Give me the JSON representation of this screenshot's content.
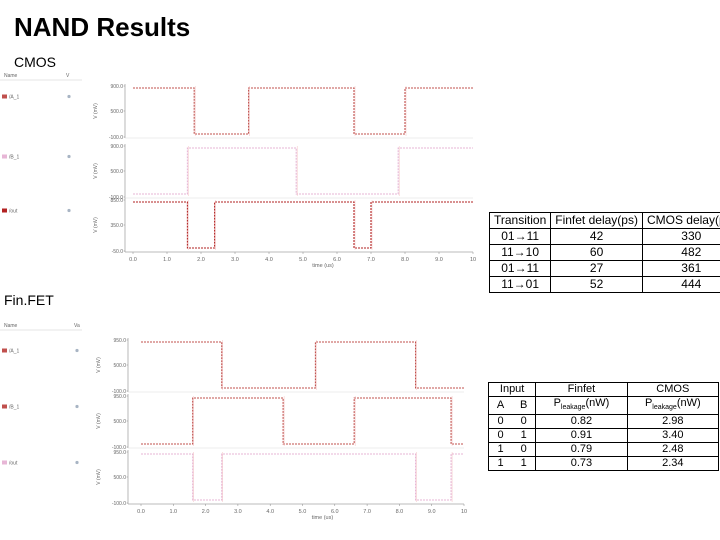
{
  "title": "NAND Results",
  "cmos_label": "CMOS",
  "finfet_label": "Fin.FET",
  "cmos_plot": {
    "panel_header": {
      "name": "Name",
      "value": "V"
    },
    "signals": [
      {
        "name": "/A_1",
        "color": "#c0504d"
      },
      {
        "name": "/B_1",
        "color": "#e7b6d6"
      },
      {
        "name": "/out",
        "color": "#b22222"
      }
    ],
    "x_ticks": [
      "0.0",
      "1.0",
      "2.0",
      "3.0",
      "4.0",
      "5.0",
      "6.0",
      "7.0",
      "8.0",
      "9.0",
      "10"
    ],
    "x_label": "time (us)",
    "y_label": "V (mV)",
    "panels": [
      {
        "ticks": [
          "900.0",
          "500.0",
          "-100.0"
        ],
        "edges": [
          1.8,
          3.4,
          6.5,
          8.0
        ],
        "start_high": true
      },
      {
        "ticks": [
          "900.0",
          "500.0",
          "-100.0"
        ],
        "edges": [
          1.6,
          4.8,
          7.8
        ],
        "start_high": false
      },
      {
        "ticks": [
          "850.0",
          "350.0",
          "-50.0"
        ],
        "edges": [
          1.6,
          2.4,
          6.5,
          7.0
        ],
        "start_high": true
      }
    ]
  },
  "finfet_plot": {
    "panel_header": {
      "name": "Name",
      "value": "Va"
    },
    "signals": [
      {
        "name": "/A_1",
        "color": "#c0504d"
      },
      {
        "name": "/B_1",
        "color": "#c0504d"
      },
      {
        "name": "/out",
        "color": "#e7b6d6"
      }
    ],
    "x_ticks": [
      "0.0",
      "1.0",
      "2.0",
      "3.0",
      "4.0",
      "5.0",
      "6.0",
      "7.0",
      "8.0",
      "9.0",
      "10"
    ],
    "x_label": "time (us)",
    "y_label": "V (mV)",
    "panels": [
      {
        "ticks": [
          "950.0",
          "500.0",
          "-100.0"
        ],
        "edges": [
          2.5,
          5.4,
          8.5
        ],
        "start_high": true
      },
      {
        "ticks": [
          "950.0",
          "500.0",
          "-100.0"
        ],
        "edges": [
          1.6,
          4.4,
          6.6,
          9.6
        ],
        "start_high": false
      },
      {
        "ticks": [
          "950.0",
          "500.0",
          "-100.0"
        ],
        "edges": [
          1.6,
          2.5,
          8.5,
          9.6
        ],
        "start_high": true
      }
    ]
  },
  "delay_table": {
    "headers": [
      "Transition",
      "Finfet delay(ps)",
      "CMOS delay(ps)"
    ],
    "rows": [
      [
        "01→11",
        "42",
        "330"
      ],
      [
        "11→10",
        "60",
        "482"
      ],
      [
        "01→11",
        "27",
        "361"
      ],
      [
        "11→01",
        "52",
        "444"
      ]
    ]
  },
  "leakage_table": {
    "group_headers": [
      "Input",
      "Finfet",
      "CMOS"
    ],
    "p_symbol": "P",
    "p_sub": "leakage",
    "p_unit": "(nW)",
    "input_headers": [
      "A",
      "B"
    ],
    "rows": [
      [
        "0",
        "0",
        "0.82",
        "2.98"
      ],
      [
        "0",
        "1",
        "0.91",
        "3.40"
      ],
      [
        "1",
        "0",
        "0.79",
        "2.48"
      ],
      [
        "1",
        "1",
        "0.73",
        "2.34"
      ]
    ]
  }
}
